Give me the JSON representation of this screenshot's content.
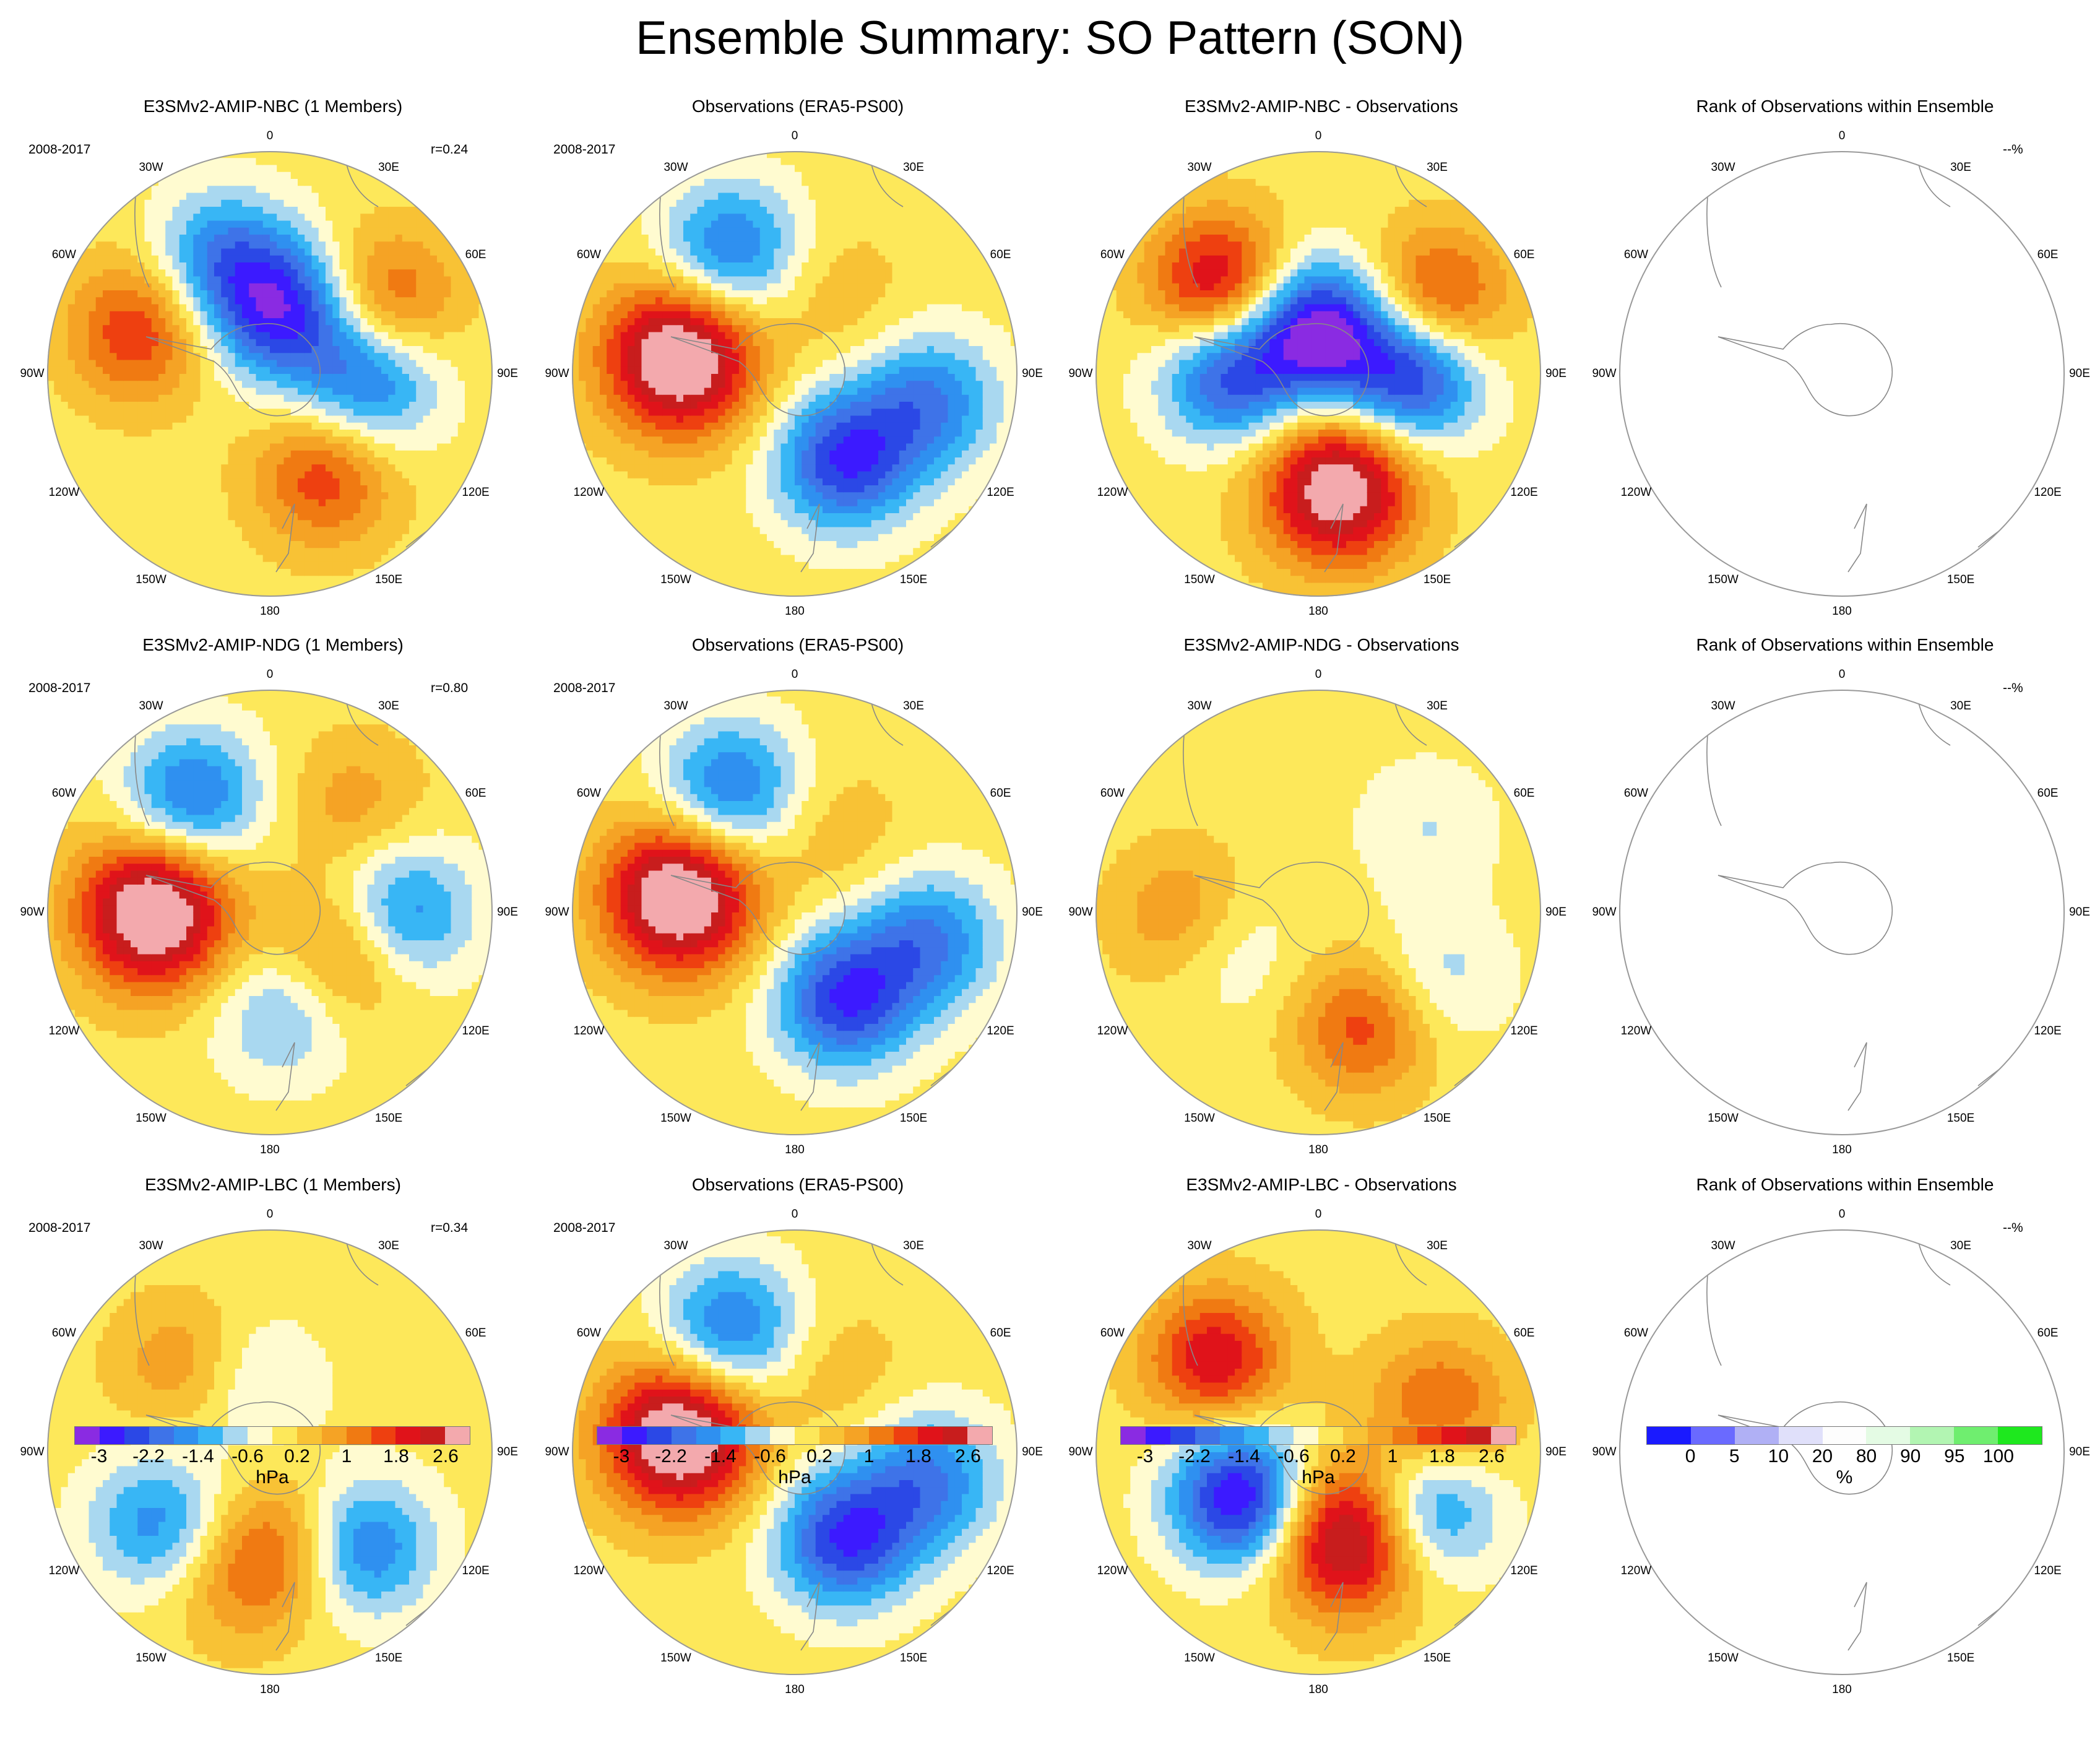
{
  "main_title": "Ensemble Summary: SO Pattern (SON)",
  "lon_labels": [
    "0",
    "30E",
    "60E",
    "90E",
    "120E",
    "150E",
    "180",
    "150W",
    "120W",
    "90W",
    "60W",
    "30W"
  ],
  "rows": [
    {
      "panels": [
        {
          "title": "E3SMv2-AMIP-NBC (1 Members)",
          "period": "2008-2017",
          "corr": "r=0.24"
        },
        {
          "title": "Observations (ERA5-PS00)",
          "period": "2008-2017",
          "corr": ""
        },
        {
          "title": "E3SMv2-AMIP-NBC - Observations",
          "period": "",
          "corr": ""
        },
        {
          "title": "Rank of Observations within Ensemble",
          "period": "",
          "corr": "--%"
        }
      ]
    },
    {
      "panels": [
        {
          "title": "E3SMv2-AMIP-NDG (1 Members)",
          "period": "2008-2017",
          "corr": "r=0.80"
        },
        {
          "title": "Observations (ERA5-PS00)",
          "period": "2008-2017",
          "corr": ""
        },
        {
          "title": "E3SMv2-AMIP-NDG - Observations",
          "period": "",
          "corr": ""
        },
        {
          "title": "Rank of Observations within Ensemble",
          "period": "",
          "corr": "--%"
        }
      ]
    },
    {
      "panels": [
        {
          "title": "E3SMv2-AMIP-LBC (1 Members)",
          "period": "2008-2017",
          "corr": "r=0.34"
        },
        {
          "title": "Observations (ERA5-PS00)",
          "period": "2008-2017",
          "corr": ""
        },
        {
          "title": "E3SMv2-AMIP-LBC - Observations",
          "period": "",
          "corr": ""
        },
        {
          "title": "Rank of Observations within Ensemble",
          "period": "",
          "corr": "--%"
        }
      ]
    }
  ],
  "colorbar_hpa": {
    "unit": "hPa",
    "ticks": [
      "-3",
      "-2.2",
      "-1.4",
      "-0.6",
      "0.2",
      "1",
      "1.8",
      "2.6"
    ],
    "colors": [
      "#8a2be2",
      "#3c1aff",
      "#2b48e6",
      "#3e73e8",
      "#2f90f0",
      "#38b6f5",
      "#a9d8f0",
      "#fffbd0",
      "#fde85a",
      "#f8c235",
      "#f5a325",
      "#f07a12",
      "#ee4010",
      "#e0131a",
      "#c81d1d",
      "#f3a9ad"
    ]
  },
  "colorbar_rank": {
    "unit": "%",
    "ticks": [
      "0",
      "5",
      "10",
      "20",
      "80",
      "90",
      "95",
      "100"
    ],
    "colors": [
      "#1a1aff",
      "#6a6aff",
      "#b0b0f5",
      "#e0e0fa",
      "#fdfdfd",
      "#e4fbe4",
      "#b2f5b2",
      "#6fee6f",
      "#1ee81e"
    ]
  },
  "fields": {
    "r1c1": [
      [
        "p",
        -72,
        62,
        1.8
      ],
      [
        "n",
        -22,
        55,
        -1.8
      ],
      [
        "n",
        14,
        28,
        -2.6
      ],
      [
        "p",
        58,
        62,
        1.6
      ],
      [
        "p",
        152,
        52,
        1.7
      ],
      [
        "n",
        94,
        45,
        -2.0
      ]
    ],
    "r1c2": [
      [
        "n",
        -28,
        62,
        -2.0
      ],
      [
        "n",
        102,
        62,
        -1.8
      ],
      [
        "P",
        -82,
        52,
        3.5
      ],
      [
        "n",
        150,
        45,
        -2.6
      ],
      [
        "p",
        28,
        40,
        0.5
      ]
    ],
    "r1c3": [
      [
        "p",
        -48,
        60,
        2.5
      ],
      [
        "n",
        0,
        20,
        -3.2
      ],
      [
        "n",
        90,
        42,
        -2.8
      ],
      [
        "n",
        -90,
        40,
        -2.4
      ],
      [
        "p",
        58,
        62,
        2.0
      ],
      [
        "P",
        170,
        52,
        3.2
      ]
    ],
    "r2c1": [
      [
        "n",
        -34,
        62,
        -2.0
      ],
      [
        "P",
        -90,
        52,
        3.5
      ],
      [
        "n",
        90,
        60,
        -1.8
      ],
      [
        "p",
        120,
        38,
        1.4
      ],
      [
        "n",
        172,
        45,
        -1.2
      ],
      [
        "p",
        38,
        62,
        0.8
      ]
    ],
    "r2c2": [
      [
        "n",
        -28,
        62,
        -2.0
      ],
      [
        "n",
        102,
        62,
        -1.8
      ],
      [
        "P",
        -82,
        52,
        3.5
      ],
      [
        "n",
        150,
        45,
        -2.6
      ],
      [
        "p",
        28,
        40,
        0.5
      ]
    ],
    "r2c3": [
      [
        "p",
        -92,
        60,
        1.2
      ],
      [
        "p",
        158,
        55,
        1.6
      ],
      [
        "n",
        -110,
        44,
        -0.8
      ],
      [
        "n",
        52,
        62,
        -0.6
      ],
      [
        "n",
        118,
        62,
        -0.8
      ]
    ],
    "r3c1": [
      [
        "n",
        -122,
        60,
        -1.6
      ],
      [
        "n",
        135,
        60,
        -1.9
      ],
      [
        "p",
        172,
        42,
        1.2
      ],
      [
        "p",
        -45,
        55,
        1.0
      ],
      [
        "n",
        -15,
        32,
        -0.8
      ],
      [
        "p",
        -165,
        60,
        0.8
      ]
    ],
    "r3c2": [
      [
        "n",
        -28,
        62,
        -2.0
      ],
      [
        "n",
        102,
        62,
        -1.8
      ],
      [
        "P",
        -82,
        52,
        3.5
      ],
      [
        "n",
        150,
        45,
        -2.6
      ],
      [
        "p",
        28,
        40,
        0.5
      ]
    ],
    "r3c3": [
      [
        "p",
        -48,
        62,
        2.2
      ],
      [
        "n",
        -120,
        40,
        -3.2
      ],
      [
        "P",
        160,
        40,
        3.2
      ],
      [
        "n",
        118,
        55,
        -2.0
      ],
      [
        "p",
        70,
        58,
        1.5
      ]
    ]
  }
}
